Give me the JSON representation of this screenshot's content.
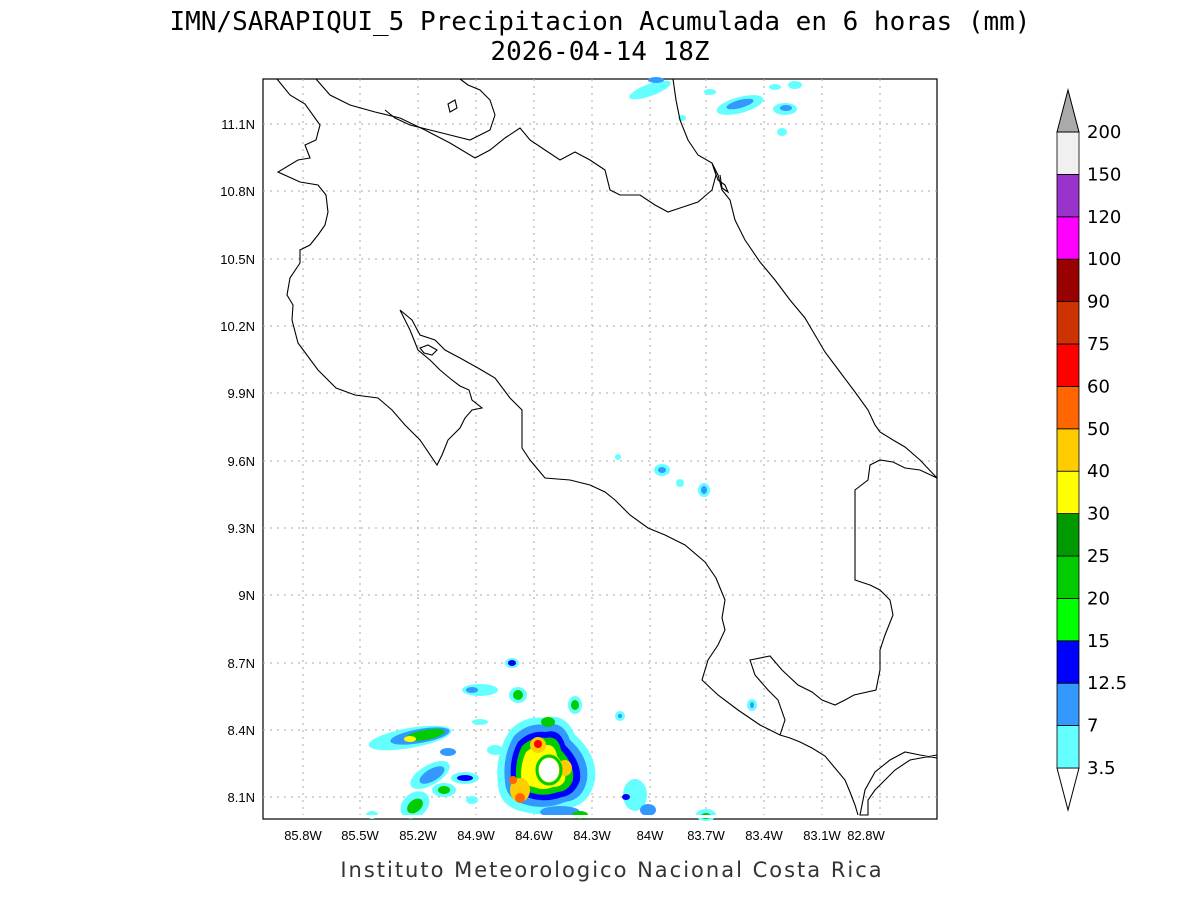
{
  "title_line1": "IMN/SARAPIQUI_5 Precipitacion Acumulada en 6 horas (mm)",
  "title_line2": "2026-04-14 18Z",
  "footer": "Instituto Meteorologico Nacional Costa Rica",
  "lat_ticks": [
    "11.1N",
    "10.8N",
    "10.5N",
    "10.2N",
    "9.9N",
    "9.6N",
    "9.3N",
    "9N",
    "8.7N",
    "8.4N",
    "8.1N"
  ],
  "lon_ticks": [
    "85.8W",
    "85.5W",
    "85.2W",
    "84.9W",
    "84.6W",
    "84.3W",
    "84W",
    "83.7W",
    "83.4W",
    "83.1W",
    "82.8W"
  ],
  "legend": {
    "levels": [
      "3.5",
      "7",
      "12.5",
      "15",
      "20",
      "25",
      "30",
      "40",
      "50",
      "60",
      "75",
      "90",
      "100",
      "120",
      "150",
      "200"
    ],
    "colors": [
      "#66ffff",
      "#3399ff",
      "#0000ff",
      "#00ff00",
      "#00cc00",
      "#009900",
      "#ffff00",
      "#ffcc00",
      "#ff6600",
      "#ff0000",
      "#cc3300",
      "#990000",
      "#ff00ff",
      "#9933cc",
      "#f0f0f0",
      "#aaaaaa"
    ]
  }
}
